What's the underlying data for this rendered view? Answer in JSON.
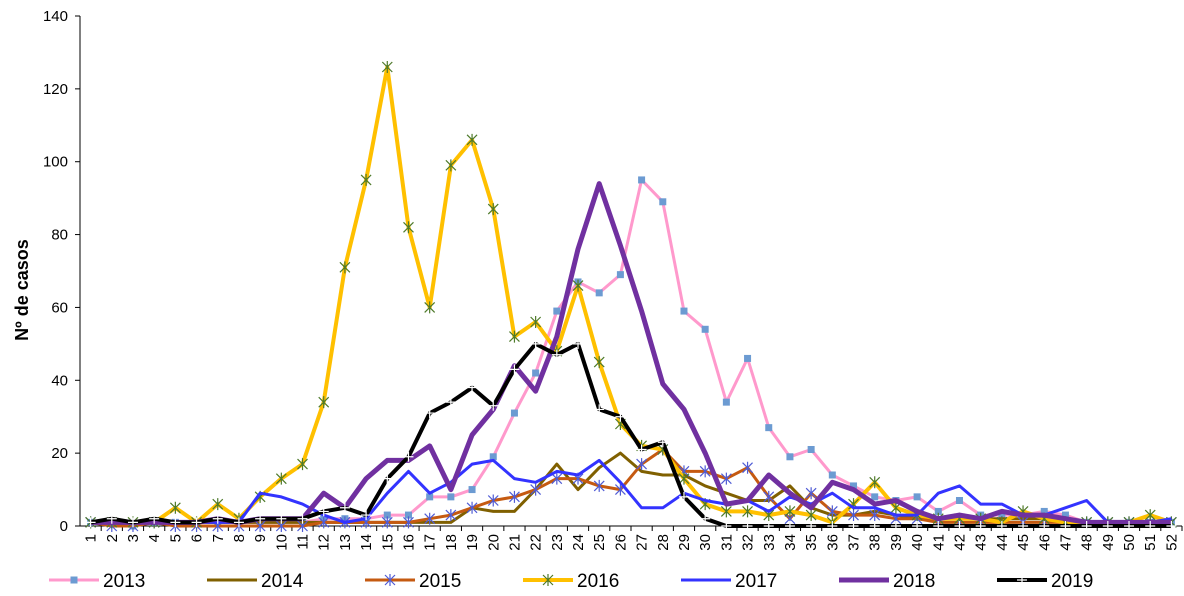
{
  "chart_data": {
    "type": "line",
    "y_label": "Nº de casos",
    "categories": [
      "1",
      "2",
      "3",
      "4",
      "5",
      "6",
      "7",
      "8",
      "9",
      "10",
      "11",
      "12",
      "13",
      "14",
      "15",
      "16",
      "17",
      "18",
      "19",
      "20",
      "21",
      "22",
      "23",
      "24",
      "25",
      "26",
      "27",
      "28",
      "29",
      "30",
      "31",
      "32",
      "33",
      "34",
      "35",
      "36",
      "37",
      "38",
      "39",
      "40",
      "41",
      "42",
      "43",
      "44",
      "45",
      "46",
      "47",
      "48",
      "49",
      "50",
      "51",
      "52"
    ],
    "ylim": [
      0,
      140
    ],
    "yticks": [
      0,
      20,
      40,
      60,
      80,
      100,
      120,
      140
    ],
    "legend": "bottom",
    "series": [
      {
        "name": "2013",
        "color": "#ff99cc",
        "marker": "square",
        "marker_color": "#6c9bd2",
        "width": 3,
        "values": [
          1,
          1,
          0,
          1,
          1,
          1,
          1,
          1,
          1,
          1,
          1,
          2,
          2,
          2,
          3,
          3,
          8,
          8,
          10,
          19,
          31,
          42,
          59,
          67,
          64,
          69,
          95,
          89,
          59,
          54,
          34,
          46,
          27,
          19,
          21,
          14,
          11,
          8,
          7,
          8,
          4,
          7,
          3,
          3,
          3,
          4,
          3,
          1,
          1,
          1,
          1,
          1
        ]
      },
      {
        "name": "2014",
        "color": "#806000",
        "marker": "none",
        "marker_color": "#806000",
        "width": 3,
        "values": [
          1,
          1,
          1,
          1,
          1,
          1,
          1,
          1,
          1,
          1,
          1,
          1,
          1,
          1,
          1,
          1,
          1,
          1,
          5,
          4,
          4,
          10,
          17,
          10,
          16,
          20,
          15,
          14,
          14,
          11,
          9,
          7,
          7,
          11,
          5,
          3,
          3,
          4,
          3,
          2,
          2,
          2,
          2,
          2,
          2,
          2,
          2,
          1,
          1,
          1,
          1,
          1
        ]
      },
      {
        "name": "2015",
        "color": "#c55a11",
        "marker": "star",
        "marker_color": "#4f5bd5",
        "width": 3,
        "values": [
          1,
          0,
          0,
          1,
          0,
          0,
          0,
          0,
          0,
          0,
          0,
          1,
          1,
          1,
          1,
          1,
          2,
          3,
          5,
          7,
          8,
          10,
          13,
          13,
          11,
          10,
          17,
          21,
          15,
          15,
          13,
          16,
          8,
          2,
          9,
          4,
          3,
          3,
          2,
          2,
          1,
          1,
          1,
          1,
          1,
          1,
          1,
          1,
          1,
          1,
          1,
          1
        ]
      },
      {
        "name": "2016",
        "color": "#ffc000",
        "marker": "star",
        "marker_color": "#4e7a2a",
        "width": 4,
        "values": [
          1,
          1,
          1,
          1,
          5,
          1,
          6,
          2,
          8,
          13,
          17,
          34,
          71,
          95,
          126,
          82,
          60,
          99,
          106,
          87,
          52,
          56,
          48,
          66,
          45,
          28,
          22,
          21,
          13,
          6,
          4,
          4,
          3,
          4,
          3,
          1,
          6,
          12,
          5,
          3,
          2,
          2,
          2,
          1,
          4,
          2,
          1,
          1,
          1,
          1,
          3,
          1
        ]
      },
      {
        "name": "2017",
        "color": "#3333ff",
        "marker": "none",
        "marker_color": "#3333ff",
        "width": 3,
        "values": [
          1,
          1,
          1,
          1,
          1,
          1,
          1,
          1,
          9,
          8,
          6,
          3,
          1,
          2,
          9,
          15,
          9,
          12,
          17,
          18,
          13,
          12,
          15,
          14,
          18,
          12,
          5,
          5,
          9,
          7,
          6,
          7,
          4,
          8,
          6,
          9,
          5,
          5,
          3,
          3,
          9,
          11,
          6,
          6,
          3,
          3,
          5,
          7,
          1,
          1,
          1,
          2
        ]
      },
      {
        "name": "2018",
        "color": "#7030a0",
        "marker": "none",
        "marker_color": "#7030a0",
        "width": 5,
        "values": [
          1,
          1,
          1,
          1,
          1,
          1,
          2,
          1,
          2,
          2,
          2,
          9,
          5,
          13,
          18,
          18,
          22,
          10,
          25,
          32,
          44,
          37,
          52,
          76,
          94,
          77,
          59,
          39,
          32,
          20,
          6,
          7,
          14,
          9,
          5,
          12,
          10,
          6,
          7,
          4,
          2,
          3,
          2,
          4,
          3,
          3,
          2,
          1,
          1,
          1,
          1,
          1
        ]
      },
      {
        "name": "2019",
        "color": "#000000",
        "marker": "plus",
        "marker_color": "#ffffff",
        "width": 4,
        "values": [
          1,
          2,
          1,
          2,
          1,
          1,
          2,
          1,
          2,
          2,
          2,
          4,
          5,
          3,
          13,
          19,
          31,
          34,
          38,
          33,
          43,
          50,
          47,
          50,
          32,
          30,
          21,
          23,
          8,
          2,
          0,
          0,
          0,
          0,
          0,
          0,
          0,
          0,
          0,
          0,
          0,
          0,
          0,
          0,
          0,
          0,
          0,
          0,
          0,
          0,
          0,
          0
        ]
      }
    ]
  }
}
